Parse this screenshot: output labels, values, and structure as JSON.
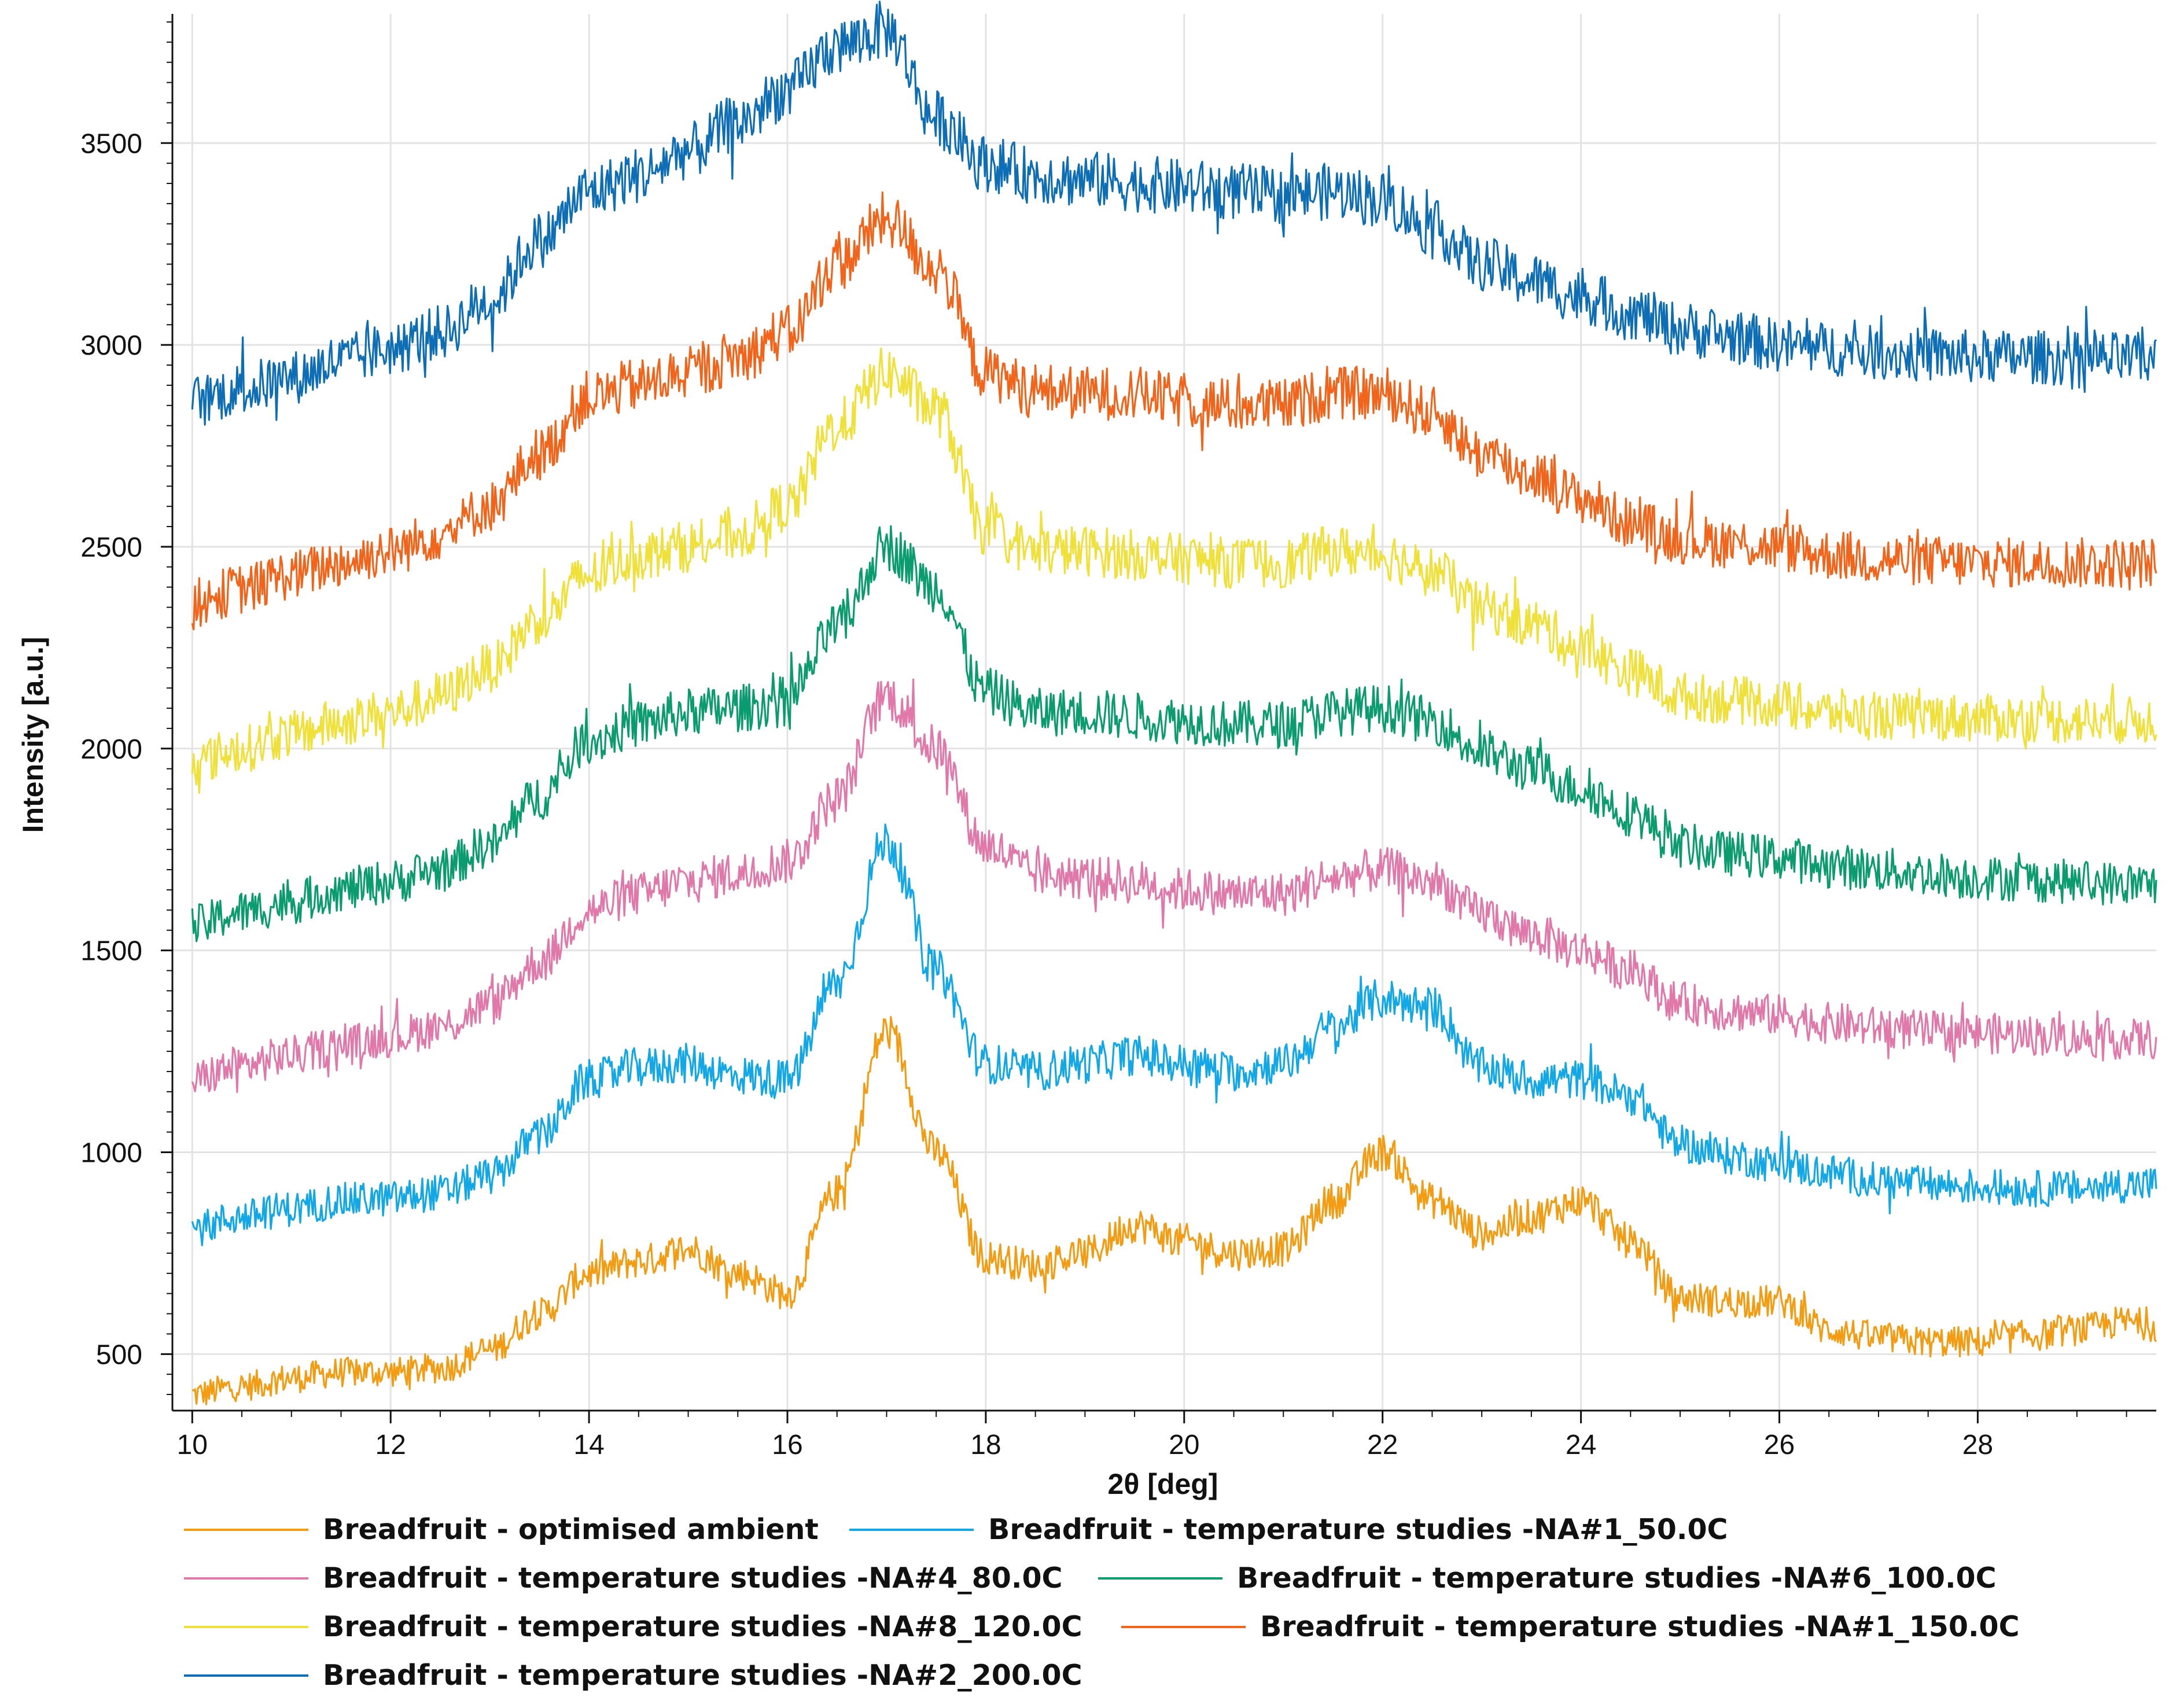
{
  "chart_data": {
    "type": "line",
    "title": "",
    "xlabel": "2θ [deg]",
    "ylabel": "Intensity [a.u.]",
    "xlim": [
      9.8,
      29.8
    ],
    "ylim": [
      360,
      3820
    ],
    "x_ticks": [
      10,
      12,
      14,
      16,
      18,
      20,
      22,
      24,
      26,
      28
    ],
    "y_ticks": [
      500,
      1000,
      1500,
      2000,
      2500,
      3000,
      3500
    ],
    "grid": true,
    "legend_position": "bottom",
    "x": [
      10.0,
      10.5,
      11.0,
      11.5,
      12.0,
      12.5,
      13.0,
      13.5,
      14.0,
      14.5,
      15.0,
      15.5,
      16.0,
      16.5,
      17.0,
      17.5,
      18.0,
      18.5,
      19.0,
      19.5,
      20.0,
      20.5,
      21.0,
      21.5,
      22.0,
      22.5,
      23.0,
      23.5,
      24.0,
      24.5,
      25.0,
      25.5,
      26.0,
      26.5,
      27.0,
      27.5,
      28.0,
      28.5,
      29.0,
      29.5,
      29.8
    ],
    "series": [
      {
        "name": "Breadfruit - optimised ambient",
        "color": "#f39c12",
        "values": [
          400,
          420,
          440,
          455,
          455,
          465,
          510,
          600,
          700,
          730,
          760,
          700,
          650,
          900,
          1300,
          1000,
          740,
          720,
          750,
          820,
          780,
          750,
          760,
          880,
          1000,
          880,
          800,
          840,
          880,
          780,
          640,
          630,
          630,
          560,
          540,
          530,
          530,
          545,
          560,
          580,
          570
        ]
      },
      {
        "name": "Breadfruit - temperature studies -NA#1_50.0C",
        "color": "#12a7e6",
        "values": [
          810,
          840,
          860,
          880,
          885,
          900,
          940,
          1040,
          1180,
          1210,
          1220,
          1190,
          1180,
          1420,
          1770,
          1450,
          1220,
          1200,
          1220,
          1240,
          1220,
          1200,
          1220,
          1310,
          1380,
          1360,
          1210,
          1180,
          1180,
          1140,
          1020,
          990,
          970,
          950,
          930,
          920,
          915,
          910,
          910,
          920,
          920
        ]
      },
      {
        "name": "Breadfruit - temperature studies -NA#4_80.0C",
        "color": "#e078aa",
        "values": [
          1180,
          1215,
          1240,
          1265,
          1285,
          1310,
          1365,
          1470,
          1600,
          1640,
          1670,
          1690,
          1720,
          1880,
          2130,
          2000,
          1760,
          1690,
          1680,
          1670,
          1650,
          1640,
          1640,
          1680,
          1700,
          1670,
          1590,
          1540,
          1500,
          1450,
          1370,
          1350,
          1340,
          1320,
          1310,
          1300,
          1295,
          1290,
          1285,
          1280,
          1280
        ]
      },
      {
        "name": "Breadfruit - temperature studies -NA#6_100.0C",
        "color": "#0a9c6e",
        "values": [
          1560,
          1595,
          1620,
          1650,
          1670,
          1700,
          1760,
          1880,
          2020,
          2060,
          2090,
          2100,
          2120,
          2300,
          2500,
          2400,
          2140,
          2090,
          2090,
          2080,
          2070,
          2060,
          2060,
          2090,
          2100,
          2070,
          1990,
          1950,
          1900,
          1840,
          1760,
          1740,
          1730,
          1710,
          1700,
          1690,
          1680,
          1675,
          1670,
          1665,
          1660
        ]
      },
      {
        "name": "Breadfruit - temperature studies -NA#8_120.0C",
        "color": "#f0e03a",
        "values": [
          1965,
          2000,
          2035,
          2065,
          2090,
          2130,
          2200,
          2320,
          2430,
          2480,
          2500,
          2530,
          2600,
          2800,
          2930,
          2840,
          2540,
          2490,
          2490,
          2480,
          2470,
          2460,
          2460,
          2490,
          2480,
          2440,
          2350,
          2310,
          2250,
          2190,
          2130,
          2120,
          2110,
          2090,
          2080,
          2080,
          2075,
          2075,
          2070,
          2070,
          2070
        ]
      },
      {
        "name": "Breadfruit - temperature studies -NA#1_150.0C",
        "color": "#f26419",
        "values": [
          2360,
          2395,
          2430,
          2460,
          2490,
          2530,
          2600,
          2730,
          2870,
          2900,
          2930,
          2970,
          3030,
          3200,
          3310,
          3190,
          2930,
          2890,
          2880,
          2880,
          2860,
          2850,
          2850,
          2880,
          2880,
          2830,
          2730,
          2680,
          2620,
          2560,
          2520,
          2510,
          2500,
          2480,
          2470,
          2465,
          2460,
          2460,
          2460,
          2460,
          2460
        ]
      },
      {
        "name": "Breadfruit - temperature studies -NA#2_200.0C",
        "color": "#0d6eb5",
        "values": [
          2860,
          2890,
          2920,
          2960,
          2990,
          3030,
          3110,
          3260,
          3380,
          3420,
          3480,
          3550,
          3630,
          3740,
          3780,
          3560,
          3450,
          3420,
          3410,
          3400,
          3390,
          3380,
          3370,
          3380,
          3360,
          3290,
          3200,
          3160,
          3120,
          3080,
          3040,
          3020,
          3000,
          2990,
          2980,
          2975,
          2970,
          2970,
          2965,
          2965,
          2960
        ]
      }
    ]
  }
}
